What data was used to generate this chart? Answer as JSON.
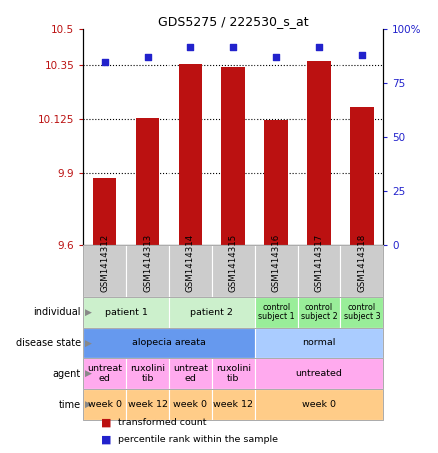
{
  "title": "GDS5275 / 222530_s_at",
  "samples": [
    "GSM1414312",
    "GSM1414313",
    "GSM1414314",
    "GSM1414315",
    "GSM1414316",
    "GSM1414317",
    "GSM1414318"
  ],
  "bar_values": [
    9.88,
    10.128,
    10.355,
    10.345,
    10.122,
    10.37,
    10.175
  ],
  "dot_values": [
    85,
    87,
    92,
    92,
    87,
    92,
    88
  ],
  "ylim_left": [
    9.6,
    10.5
  ],
  "ylim_right": [
    0,
    100
  ],
  "yticks_left": [
    9.6,
    9.9,
    10.125,
    10.35,
    10.5
  ],
  "ytick_labels_left": [
    "9.6",
    "9.9",
    "10.125",
    "10.35",
    "10.5"
  ],
  "yticks_right": [
    0,
    25,
    50,
    75,
    100
  ],
  "ytick_labels_right": [
    "0",
    "25",
    "50",
    "75",
    "100%"
  ],
  "bar_color": "#bb1111",
  "dot_color": "#2222cc",
  "individual_row": {
    "groups": [
      {
        "label": "patient 1",
        "cols": [
          0,
          1
        ],
        "color": "#ccf0cc"
      },
      {
        "label": "patient 2",
        "cols": [
          2,
          3
        ],
        "color": "#ccf0cc"
      },
      {
        "label": "control\nsubject 1",
        "cols": [
          4
        ],
        "color": "#99ee99"
      },
      {
        "label": "control\nsubject 2",
        "cols": [
          5
        ],
        "color": "#99ee99"
      },
      {
        "label": "control\nsubject 3",
        "cols": [
          6
        ],
        "color": "#99ee99"
      }
    ]
  },
  "disease_state_row": {
    "groups": [
      {
        "label": "alopecia areata",
        "cols": [
          0,
          1,
          2,
          3
        ],
        "color": "#6699ee"
      },
      {
        "label": "normal",
        "cols": [
          4,
          5,
          6
        ],
        "color": "#aaccff"
      }
    ]
  },
  "agent_row": {
    "groups": [
      {
        "label": "untreat\ned",
        "cols": [
          0
        ],
        "color": "#ffaaee"
      },
      {
        "label": "ruxolini\ntib",
        "cols": [
          1
        ],
        "color": "#ffaaee"
      },
      {
        "label": "untreat\ned",
        "cols": [
          2
        ],
        "color": "#ffaaee"
      },
      {
        "label": "ruxolini\ntib",
        "cols": [
          3
        ],
        "color": "#ffaaee"
      },
      {
        "label": "untreated",
        "cols": [
          4,
          5,
          6
        ],
        "color": "#ffaaee"
      }
    ]
  },
  "time_row": {
    "groups": [
      {
        "label": "week 0",
        "cols": [
          0
        ],
        "color": "#ffcc88"
      },
      {
        "label": "week 12",
        "cols": [
          1
        ],
        "color": "#ffcc88"
      },
      {
        "label": "week 0",
        "cols": [
          2
        ],
        "color": "#ffcc88"
      },
      {
        "label": "week 12",
        "cols": [
          3
        ],
        "color": "#ffcc88"
      },
      {
        "label": "week 0",
        "cols": [
          4,
          5,
          6
        ],
        "color": "#ffcc88"
      }
    ]
  },
  "row_labels": [
    "individual",
    "disease state",
    "agent",
    "time"
  ],
  "legend_items": [
    {
      "label": "transformed count",
      "color": "#bb1111"
    },
    {
      "label": "percentile rank within the sample",
      "color": "#2222cc"
    }
  ],
  "sample_row_color": "#cccccc",
  "figsize": [
    4.38,
    4.53
  ],
  "dpi": 100
}
